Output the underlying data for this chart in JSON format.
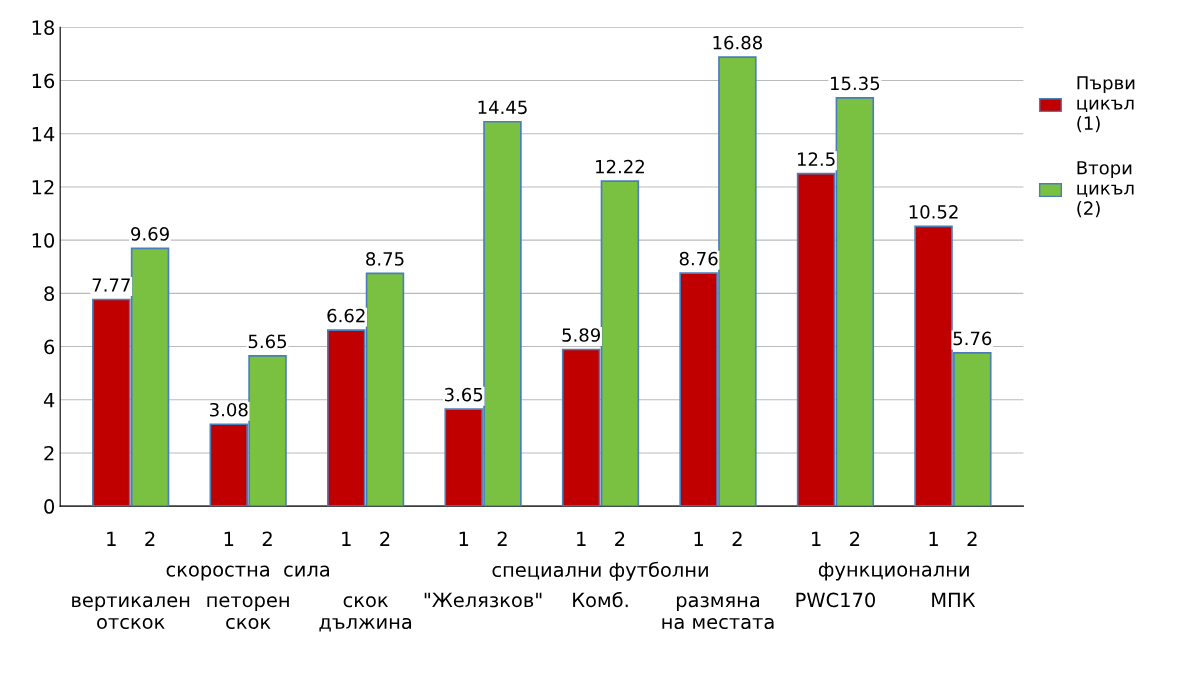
{
  "chart_data": {
    "type": "bar",
    "categories": [
      "вертикален\nотскок",
      "петорен\nскок",
      "скок\nдължина",
      "\"Желязков\"",
      "Комб.",
      "размяна\nна местата",
      "PWC170",
      "МПК"
    ],
    "series": [
      {
        "name": "Първи\nцикъл\n(1)",
        "color": "#c00000",
        "values": [
          7.77,
          3.08,
          6.62,
          3.65,
          5.89,
          8.76,
          12.5,
          10.52
        ]
      },
      {
        "name": "Втори\nцикъл\n(2)",
        "color": "#7ac142",
        "values": [
          9.69,
          5.65,
          8.75,
          14.45,
          12.22,
          16.88,
          15.35,
          5.76
        ]
      }
    ],
    "annotations": [
      "1",
      "2",
      "1",
      "2",
      "1",
      "2",
      "1",
      "2",
      "1",
      "2",
      "1",
      "2",
      "1",
      "2",
      "1",
      "2",
      "скоростна  сила",
      "специални футболни",
      "функционални"
    ],
    "ylim": [
      0,
      18
    ],
    "yticks": [
      0,
      2,
      4,
      6,
      8,
      10,
      12,
      14,
      16,
      18
    ],
    "grid": "y",
    "legend": "right",
    "data_labels": true
  }
}
